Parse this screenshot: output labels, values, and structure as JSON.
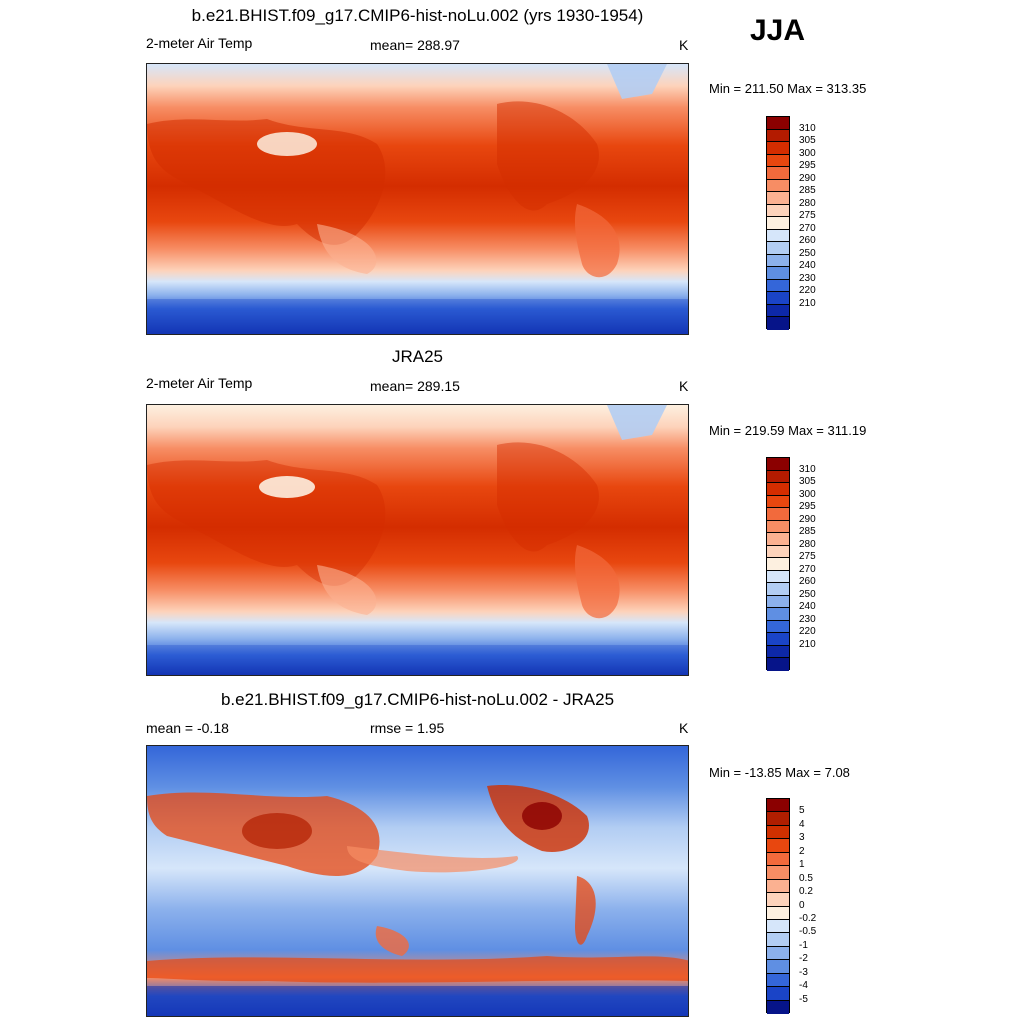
{
  "season": "JJA",
  "panels": [
    {
      "title": "b.e21.BHIST.f09_g17.CMIP6-hist-noLu.002 (yrs 1930-1954)",
      "left_label": "2-meter Air Temp",
      "center_label": "mean= 288.97",
      "units": "K",
      "minmax": "Min = 211.50 Max = 313.35"
    },
    {
      "title": "JRA25",
      "left_label": "2-meter Air Temp",
      "center_label": "mean= 289.15",
      "units": "K",
      "minmax": "Min = 219.59 Max = 311.19"
    },
    {
      "title": "b.e21.BHIST.f09_g17.CMIP6-hist-noLu.002 - JRA25",
      "left_label": "mean =  -0.18",
      "center_label": "rmse =   1.95",
      "units": "K",
      "minmax": "Min = -13.85 Max =   7.08"
    }
  ],
  "temp_colorbar": {
    "labels": [
      "310",
      "305",
      "300",
      "295",
      "290",
      "285",
      "280",
      "275",
      "270",
      "260",
      "250",
      "240",
      "230",
      "220",
      "210"
    ],
    "colors": [
      "#8b0000",
      "#b31b00",
      "#d42d00",
      "#e8470f",
      "#f26a3c",
      "#f78d64",
      "#fbb191",
      "#fdd3bb",
      "#fdf0e0",
      "#d6e6fa",
      "#b2cdf3",
      "#8cb1ec",
      "#5f8fe3",
      "#3466d9",
      "#1a44c7",
      "#0d28a8",
      "#061489"
    ]
  },
  "diff_colorbar": {
    "labels": [
      "5",
      "4",
      "3",
      "2",
      "1",
      "0.5",
      "0.2",
      "0",
      "-0.2",
      "-0.5",
      "-1",
      "-2",
      "-3",
      "-4",
      "-5"
    ],
    "colors": [
      "#8b0000",
      "#b01e00",
      "#d03000",
      "#e8470f",
      "#f26a3c",
      "#f78d64",
      "#fbb191",
      "#fdd3bb",
      "#fdf0e0",
      "#d6e6fa",
      "#b2cdf3",
      "#8cb1ec",
      "#5f8fe3",
      "#3466d9",
      "#1a44c7",
      "#061489"
    ]
  }
}
